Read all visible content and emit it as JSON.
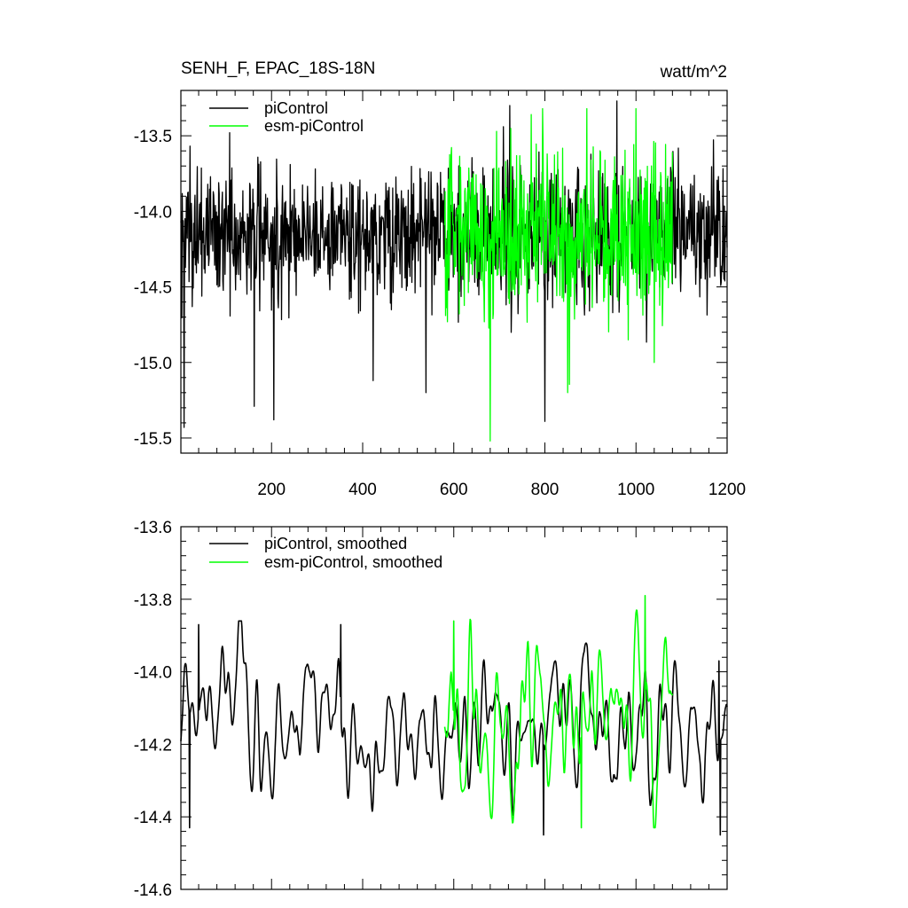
{
  "colors": {
    "picontrol": "#000000",
    "esm_picontrol": "#00ff00"
  },
  "chart_data": [
    {
      "type": "line",
      "title": "SENH_F, EPAC_18S-18N",
      "units": "watt/m^2",
      "xlabel": "",
      "ylabel": "",
      "xlim": [
        1,
        1200
      ],
      "ylim": [
        -15.6,
        -13.2
      ],
      "xticks": [
        200,
        400,
        600,
        800,
        1000,
        1200
      ],
      "xtick_labels": [
        "200",
        "400",
        "600",
        "800",
        "1000",
        "1200"
      ],
      "yticks": [
        -13.5,
        -14.0,
        -14.5,
        -15.0,
        -15.5
      ],
      "ytick_labels": [
        "-13.5",
        "-14.0",
        "-14.5",
        "-15.0",
        "-15.5"
      ],
      "legend_position": "top-left",
      "series": [
        {
          "name": "piControl",
          "color": "#000000",
          "x_range": [
            1,
            1200
          ],
          "approx_mean": -14.15,
          "approx_std": 0.22,
          "approx_min": -15.43,
          "approx_max": -13.27,
          "notable_points": [
            [
              8,
              -15.43
            ],
            [
              162,
              -15.29
            ],
            [
              205,
              -15.38
            ],
            [
              423,
              -15.12
            ],
            [
              539,
              -15.2
            ],
            [
              800,
              -15.39
            ],
            [
              723,
              -13.3
            ],
            [
              958,
              -13.27
            ]
          ]
        },
        {
          "name": "esm-piControl",
          "color": "#00ff00",
          "x_range": [
            580,
            1080
          ],
          "approx_mean": -14.15,
          "approx_std": 0.28,
          "approx_min": -15.52,
          "approx_max": -13.32,
          "notable_points": [
            [
              680,
              -15.52
            ],
            [
              850,
              -15.2
            ],
            [
              1000,
              -13.32
            ],
            [
              1040,
              -15.0
            ]
          ]
        }
      ]
    },
    {
      "type": "line",
      "title": "",
      "xlabel": "",
      "ylabel": "",
      "xlim": [
        1,
        1200
      ],
      "ylim": [
        -14.6,
        -13.6
      ],
      "xticks": [
        200,
        400,
        600,
        800,
        1000,
        1200
      ],
      "yticks": [
        -13.6,
        -13.8,
        -14.0,
        -14.2,
        -14.4,
        -14.6
      ],
      "ytick_labels": [
        "-13.6",
        "-13.8",
        "-14.0",
        "-14.2",
        "-14.4",
        "-14.6"
      ],
      "legend_position": "top-left",
      "series": [
        {
          "name": "piControl, smoothed",
          "color": "#000000",
          "x_range": [
            1,
            1200
          ],
          "approx_mean": -14.15,
          "approx_std": 0.1,
          "approx_min": -14.45,
          "approx_max": -13.86,
          "notable_points": [
            [
              20,
              -14.43
            ],
            [
              40,
              -13.87
            ],
            [
              352,
              -13.87
            ],
            [
              797,
              -14.45
            ],
            [
              1185,
              -14.45
            ],
            [
              1182,
              -13.97
            ]
          ]
        },
        {
          "name": "esm-piControl, smoothed",
          "color": "#00ff00",
          "x_range": [
            580,
            1080
          ],
          "approx_mean": -14.13,
          "approx_std": 0.12,
          "approx_min": -14.43,
          "approx_max": -13.79,
          "notable_points": [
            [
              1020,
              -13.79
            ],
            [
              880,
              -14.43
            ],
            [
              600,
              -13.86
            ]
          ]
        }
      ]
    }
  ]
}
